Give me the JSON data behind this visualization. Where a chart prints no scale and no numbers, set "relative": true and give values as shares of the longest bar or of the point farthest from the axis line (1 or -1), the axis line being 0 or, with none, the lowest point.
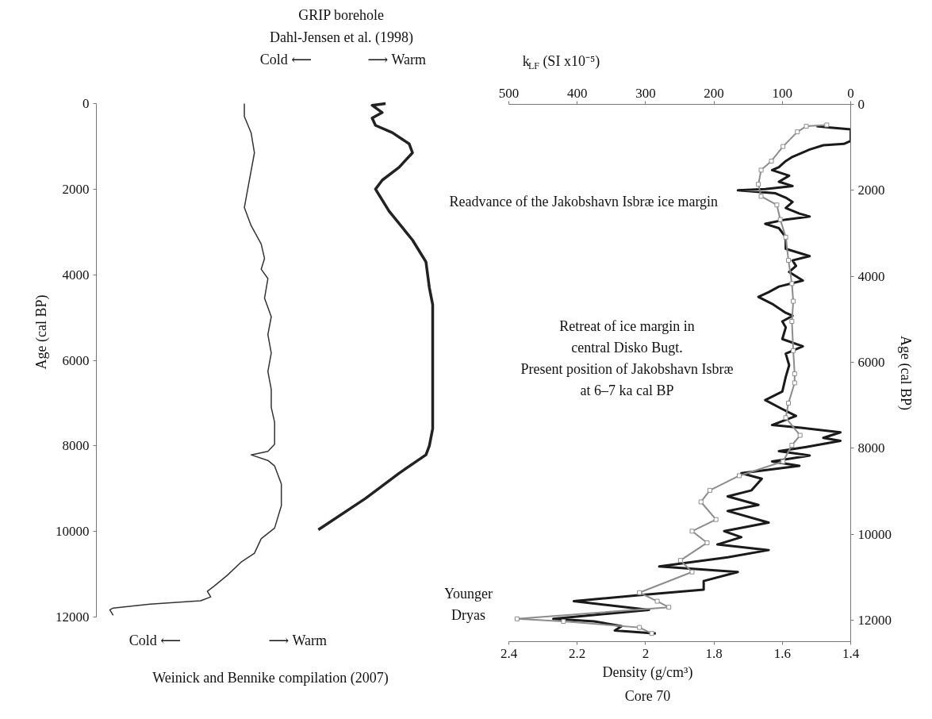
{
  "chart_data": [
    {
      "type": "line",
      "orientation": "horizontal",
      "relative": true,
      "tick_labels": "y",
      "ylabel": "Age (cal BP)",
      "ylim": [
        12000,
        0
      ],
      "yticks": [
        0,
        2000,
        4000,
        6000,
        8000,
        10000,
        12000
      ],
      "series": [
        {
          "color": "#333333",
          "x": [
            0,
            300,
            680,
            1150,
            2000,
            2430,
            2850,
            3280,
            3620,
            3870,
            4090,
            4550,
            4980,
            5400,
            5830,
            6260,
            6680,
            7100,
            7450,
            7960,
            8130,
            8210,
            8340,
            8470,
            8890,
            9400,
            9920,
            10170,
            10510,
            10720,
            11020,
            11280,
            11400,
            11530,
            11620,
            11700,
            11790,
            11830,
            11960
          ],
          "values": [
            0.44,
            0.44,
            0.46,
            0.47,
            0.45,
            0.44,
            0.46,
            0.49,
            0.5,
            0.49,
            0.51,
            0.5,
            0.52,
            0.51,
            0.52,
            0.51,
            0.52,
            0.52,
            0.53,
            0.53,
            0.51,
            0.46,
            0.51,
            0.53,
            0.55,
            0.55,
            0.53,
            0.49,
            0.47,
            0.43,
            0.39,
            0.35,
            0.33,
            0.34,
            0.31,
            0.16,
            0.05,
            0.04,
            0.05
          ]
        },
        {
          "color": "#222222",
          "x": [
            0,
            40,
            210,
            340,
            510,
            680,
            940,
            1150,
            1490,
            1790,
            2000,
            2510,
            3190,
            3700,
            4300,
            4700,
            7600,
            8000,
            8210,
            8640,
            9230,
            9960
          ],
          "values": [
            0.86,
            0.82,
            0.85,
            0.82,
            0.83,
            0.88,
            0.93,
            0.94,
            0.9,
            0.85,
            0.83,
            0.87,
            0.94,
            0.98,
            0.99,
            1,
            1,
            0.99,
            0.98,
            0.9,
            0.8,
            0.66
          ]
        }
      ],
      "annotations": [
        "GRIP borehole",
        "Dahl-Jensen et al. (1998)",
        "Cold ⟵",
        "⟶ Warm",
        "Cold ⟵",
        "⟶ Warm",
        "Weinick and Bennike compilation (2007)"
      ]
    },
    {
      "type": "line",
      "orientation": "horizontal",
      "xlabel": "Density (g/cm³)",
      "x2label": "k$_{LF}$ (SI x10⁻⁵)",
      "ylabel": "Age (cal BP)",
      "xlim": [
        2.4,
        1.4
      ],
      "xticks": [
        2.4,
        2.2,
        2,
        1.8,
        1.6,
        1.4
      ],
      "x2lim": [
        500,
        0
      ],
      "x2ticks": [
        500,
        400,
        300,
        200,
        100,
        0
      ],
      "ylim": [
        12500,
        0
      ],
      "yticks": [
        0,
        2000,
        4000,
        6000,
        8000,
        10000,
        12000
      ],
      "series": [
        {
          "color": "#1a1a1a",
          "x": [
            510,
            540,
            580,
            850,
            920,
            950,
            1050,
            1220,
            1320,
            1460,
            1530,
            1660,
            1800,
            1900,
            1970,
            2000,
            2070,
            2170,
            2270,
            2410,
            2540,
            2610,
            2680,
            2780,
            2880,
            3090,
            3360,
            3530,
            3630,
            3760,
            3900,
            4100,
            4240,
            4370,
            4480,
            4640,
            4850,
            4920,
            5050,
            5190,
            5460,
            5630,
            5800,
            6070,
            6340,
            6680,
            6880,
            7090,
            7250,
            7460,
            7530,
            7630,
            7760,
            7830,
            7970,
            8070,
            8170,
            8310,
            8410,
            8580,
            8710,
            8980,
            9120,
            9320,
            9460,
            9730,
            9930,
            10070,
            10240,
            10370,
            10540,
            10750,
            10880,
            11090,
            11290,
            11420,
            11560,
            11760,
            11970,
            12030,
            12140,
            12240,
            12310
          ],
          "values": [
            1.5,
            1.46,
            1.4,
            1.4,
            1.42,
            1.48,
            1.52,
            1.57,
            1.59,
            1.61,
            1.63,
            1.58,
            1.61,
            1.57,
            1.65,
            1.73,
            1.62,
            1.59,
            1.57,
            1.59,
            1.55,
            1.52,
            1.59,
            1.65,
            1.61,
            1.59,
            1.59,
            1.52,
            1.57,
            1.56,
            1.58,
            1.54,
            1.61,
            1.64,
            1.67,
            1.63,
            1.59,
            1.57,
            1.6,
            1.59,
            1.6,
            1.54,
            1.59,
            1.58,
            1.59,
            1.6,
            1.65,
            1.6,
            1.56,
            1.63,
            1.54,
            1.43,
            1.48,
            1.43,
            1.53,
            1.61,
            1.52,
            1.63,
            1.55,
            1.72,
            1.66,
            1.69,
            1.76,
            1.67,
            1.76,
            1.64,
            1.77,
            1.72,
            1.79,
            1.64,
            1.76,
            1.96,
            1.73,
            1.83,
            1.83,
            2.02,
            2.21,
            1.99,
            2.27,
            2.15,
            2.07,
            2.09,
            1.97
          ]
        },
        {
          "color": "#8c8c8c",
          "axis": "x2",
          "marker": "square",
          "x": [
            480,
            510,
            640,
            980,
            1320,
            1530,
            1860,
            2140,
            2340,
            2680,
            3090,
            3630,
            4170,
            4580,
            5050,
            5730,
            6270,
            6480,
            6950,
            7290,
            7700,
            7930,
            8310,
            8640,
            8980,
            9250,
            9660,
            9930,
            10200,
            10610,
            10880,
            11360,
            11560,
            11700,
            11970,
            12030,
            12170,
            12310
          ],
          "values": [
            35,
            65,
            78,
            99,
            116,
            131,
            135,
            131,
            108,
            103,
            95,
            91,
            86,
            84,
            86,
            84,
            82,
            82,
            91,
            95,
            74,
            86,
            99,
            163,
            206,
            219,
            197,
            232,
            210,
            249,
            232,
            309,
            283,
            266,
            488,
            420,
            309,
            291
          ]
        }
      ],
      "annotations": [
        "Readvance of the Jakobshavn Isbræ ice margin",
        "Retreat of ice margin in\ncentral Disko Bugt.\nPresent position of Jakobshavn Isbræ\nat 6–7 ka cal BP",
        "Younger\nDryas",
        "Core 70"
      ]
    }
  ]
}
